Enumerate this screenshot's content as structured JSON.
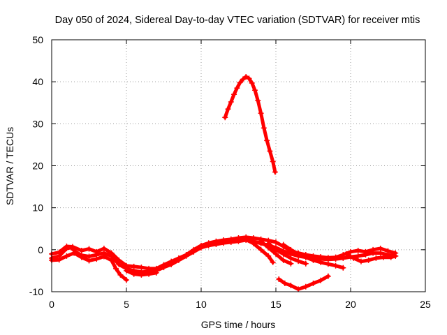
{
  "chart_data": {
    "type": "scatter",
    "title": "Day 050 of 2024, Sidereal Day-to-day VTEC variation (SDTVAR) for receiver mtis",
    "xlabel": "GPS time / hours",
    "ylabel": "SDTVAR / TECUs",
    "xlim": [
      0,
      25
    ],
    "ylim": [
      -10,
      50
    ],
    "xticks": [
      0,
      5,
      10,
      15,
      20,
      25
    ],
    "yticks": [
      -10,
      0,
      10,
      20,
      30,
      40,
      50
    ],
    "grid": true,
    "marker_color": "#ff0000",
    "series": [
      {
        "name": "arc-1",
        "points": [
          [
            0,
            -2
          ],
          [
            0.5,
            -1.5
          ],
          [
            1,
            0.3
          ],
          [
            1.3,
            0.5
          ],
          [
            1.6,
            -0.5
          ],
          [
            2,
            -1.3
          ],
          [
            2.5,
            -1.6
          ],
          [
            3,
            -1.2
          ],
          [
            3.5,
            -0.8
          ],
          [
            4,
            -1.5
          ],
          [
            4.5,
            -3.5
          ],
          [
            5,
            -4.5
          ],
          [
            5.5,
            -5
          ],
          [
            6,
            -5.3
          ],
          [
            6.5,
            -5.2
          ],
          [
            7,
            -5
          ],
          [
            7.5,
            -4.2
          ],
          [
            8,
            -3.5
          ],
          [
            8.5,
            -2.5
          ],
          [
            9,
            -1.5
          ],
          [
            9.5,
            -0.5
          ],
          [
            10,
            0.5
          ],
          [
            10.5,
            1
          ],
          [
            11,
            1.3
          ],
          [
            11.5,
            1.6
          ],
          [
            12,
            1.8
          ],
          [
            12.5,
            2
          ],
          [
            13,
            2.3
          ],
          [
            13.5,
            2
          ],
          [
            14,
            1.5
          ],
          [
            14.5,
            1
          ],
          [
            15,
            0.5
          ],
          [
            15.5,
            -0.3
          ],
          [
            16,
            -1
          ],
          [
            16.5,
            -1.5
          ],
          [
            17,
            -1.8
          ],
          [
            17.5,
            -2
          ],
          [
            18,
            -2.2
          ],
          [
            18.5,
            -2.3
          ],
          [
            19,
            -2.2
          ],
          [
            19.5,
            -2
          ],
          [
            20,
            -1.7
          ],
          [
            20.5,
            -1.5
          ],
          [
            21,
            -1.2
          ],
          [
            21.5,
            -0.8
          ],
          [
            22,
            -0.8
          ],
          [
            22.5,
            -1.2
          ],
          [
            23,
            -1.5
          ]
        ]
      },
      {
        "name": "arc-2",
        "points": [
          [
            0,
            -1
          ],
          [
            0.5,
            -0.6
          ],
          [
            1,
            0.8
          ],
          [
            1.4,
            0.7
          ],
          [
            2,
            -0.2
          ],
          [
            2.5,
            0.2
          ],
          [
            3,
            -0.5
          ],
          [
            3.5,
            0.3
          ],
          [
            4,
            -0.8
          ],
          [
            4.5,
            -2.5
          ],
          [
            5,
            -3.8
          ],
          [
            5.5,
            -4
          ],
          [
            6,
            -4.2
          ],
          [
            6.5,
            -4.5
          ],
          [
            7,
            -4.5
          ],
          [
            7.5,
            -3.6
          ],
          [
            8,
            -2.8
          ],
          [
            8.5,
            -2
          ],
          [
            9,
            -1.2
          ],
          [
            9.5,
            0
          ],
          [
            10,
            1
          ],
          [
            10.5,
            1.6
          ],
          [
            11,
            2
          ],
          [
            11.5,
            2.3
          ],
          [
            12,
            2.5
          ],
          [
            12.5,
            2.8
          ],
          [
            13,
            3
          ],
          [
            13.5,
            2.8
          ],
          [
            14,
            2.5
          ],
          [
            14.5,
            2.2
          ],
          [
            15,
            1.8
          ],
          [
            15.5,
            0.8
          ],
          [
            16,
            -0.3
          ],
          [
            16.5,
            -0.8
          ],
          [
            17,
            -1.2
          ],
          [
            17.5,
            -1.5
          ],
          [
            18,
            -1.7
          ],
          [
            18.5,
            -1.9
          ],
          [
            19,
            -1.8
          ],
          [
            19.5,
            -1.2
          ],
          [
            20,
            -0.5
          ],
          [
            20.5,
            -0.2
          ],
          [
            21,
            -0.5
          ],
          [
            21.5,
            0
          ],
          [
            22,
            0.3
          ],
          [
            22.5,
            -0.3
          ],
          [
            23,
            -0.8
          ]
        ]
      },
      {
        "name": "arc-3",
        "points": [
          [
            0,
            -2.5
          ],
          [
            0.5,
            -2.4
          ],
          [
            1,
            -1.5
          ],
          [
            1.5,
            -0.8
          ],
          [
            2,
            -1.8
          ],
          [
            2.5,
            -2.6
          ],
          [
            3,
            -2.2
          ],
          [
            3.5,
            -1.6
          ],
          [
            4,
            -2.5
          ],
          [
            4.3,
            -4.5
          ],
          [
            4.6,
            -6
          ],
          [
            5,
            -7.2
          ]
        ]
      },
      {
        "name": "arc-4",
        "points": [
          [
            5,
            -5
          ],
          [
            5.5,
            -5.8
          ],
          [
            6,
            -6
          ],
          [
            6.5,
            -5.8
          ],
          [
            7,
            -5.5
          ]
        ]
      },
      {
        "name": "arc-5",
        "points": [
          [
            13,
            2.4
          ],
          [
            13.5,
            1.5
          ],
          [
            14,
            0
          ],
          [
            14.5,
            -1.5
          ],
          [
            14.8,
            -3
          ]
        ]
      },
      {
        "name": "arc-6",
        "points": [
          [
            14,
            2
          ],
          [
            14.5,
            0.5
          ],
          [
            15,
            -1
          ],
          [
            15.5,
            -2.5
          ],
          [
            16,
            -3.3
          ]
        ]
      },
      {
        "name": "arc-7",
        "points": [
          [
            14.5,
            1.5
          ],
          [
            15,
            0
          ],
          [
            15.5,
            -1
          ],
          [
            16,
            -2
          ],
          [
            16.5,
            -2.7
          ],
          [
            17,
            -3.3
          ]
        ]
      },
      {
        "name": "arc-8",
        "points": [
          [
            15.5,
            1.2
          ],
          [
            16,
            0
          ],
          [
            16.5,
            -1
          ],
          [
            17,
            -1.8
          ],
          [
            17.5,
            -2.5
          ],
          [
            18,
            -3
          ],
          [
            18.5,
            -3.4
          ],
          [
            19,
            -3.8
          ],
          [
            19.5,
            -4.3
          ]
        ]
      },
      {
        "name": "arc-9",
        "points": [
          [
            19.7,
            -1
          ],
          [
            20.2,
            -2
          ],
          [
            20.7,
            -2.8
          ],
          [
            21.2,
            -2.5
          ],
          [
            21.7,
            -2
          ],
          [
            22.2,
            -1.8
          ],
          [
            22.7,
            -1.8
          ],
          [
            23,
            -1.5
          ]
        ]
      },
      {
        "name": "arc-10",
        "points": [
          [
            15.2,
            -7
          ],
          [
            15.6,
            -8
          ],
          [
            16,
            -8.5
          ],
          [
            16.5,
            -9.4
          ],
          [
            17,
            -8.8
          ],
          [
            17.5,
            -8
          ],
          [
            18,
            -7.3
          ],
          [
            18.5,
            -6.3
          ]
        ]
      },
      {
        "name": "arc-11",
        "points": [
          [
            11.6,
            31.5
          ],
          [
            11.8,
            33.5
          ],
          [
            12,
            35.2
          ],
          [
            12.2,
            37
          ],
          [
            12.4,
            38.5
          ],
          [
            12.6,
            39.8
          ],
          [
            12.8,
            40.6
          ],
          [
            13,
            41.2
          ],
          [
            13.2,
            40.8
          ],
          [
            13.4,
            39.7
          ],
          [
            13.6,
            38
          ],
          [
            13.8,
            35.5
          ],
          [
            14,
            32.5
          ],
          [
            14.2,
            29
          ],
          [
            14.4,
            26
          ],
          [
            14.6,
            23.5
          ],
          [
            14.8,
            21
          ],
          [
            14.95,
            18.5
          ]
        ]
      }
    ]
  }
}
